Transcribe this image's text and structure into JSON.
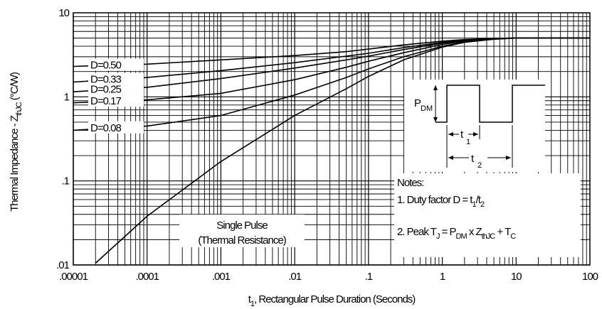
{
  "chart_data": {
    "type": "line",
    "title": "",
    "xlabel": {
      "main": "t",
      "sub": "1",
      "rest": ",  Rectangular Pulse Duration (Seconds)"
    },
    "ylabel": {
      "main": "Thermal Impedance - Z",
      "sub": "thJC",
      "rest": " (°C/W)"
    },
    "xscale": "log",
    "yscale": "log",
    "xlim": [
      1e-05,
      100
    ],
    "ylim": [
      0.01,
      10
    ],
    "grid": true,
    "x_tick_labels": [
      ".00001",
      ".0001",
      ".001",
      ".01",
      ".1",
      "1",
      "10",
      "100"
    ],
    "y_tick_labels": [
      ".01",
      ".1",
      "1",
      "10"
    ],
    "series": [
      {
        "name": "D=0.50",
        "x": [
          1e-05,
          0.0001,
          0.001,
          0.01,
          0.05,
          0.1,
          0.3,
          1,
          2,
          5,
          10,
          100
        ],
        "y": [
          2.3,
          2.45,
          2.75,
          3.1,
          3.45,
          3.7,
          4.15,
          4.6,
          4.8,
          4.95,
          5.0,
          5.0
        ]
      },
      {
        "name": "D=0.33",
        "x": [
          1e-05,
          0.0001,
          0.001,
          0.01,
          0.05,
          0.1,
          0.3,
          1,
          2,
          5,
          10,
          100
        ],
        "y": [
          1.5,
          1.7,
          2.05,
          2.55,
          3.05,
          3.3,
          3.85,
          4.45,
          4.75,
          4.95,
          5.0,
          5.0
        ]
      },
      {
        "name": "D=0.25",
        "x": [
          1e-05,
          0.0001,
          0.001,
          0.01,
          0.05,
          0.1,
          0.3,
          1,
          2,
          5,
          10,
          100
        ],
        "y": [
          1.15,
          1.3,
          1.65,
          2.2,
          2.75,
          3.05,
          3.65,
          4.35,
          4.7,
          4.95,
          5.0,
          5.0
        ]
      },
      {
        "name": "D=0.17",
        "x": [
          1e-05,
          0.0001,
          0.001,
          0.01,
          0.05,
          0.1,
          0.3,
          1,
          2,
          5,
          10,
          100
        ],
        "y": [
          0.85,
          0.92,
          1.1,
          1.6,
          2.25,
          2.65,
          3.35,
          4.2,
          4.6,
          4.9,
          5.0,
          5.0
        ]
      },
      {
        "name": "D=0.08",
        "x": [
          1e-05,
          0.0001,
          0.001,
          0.01,
          0.05,
          0.1,
          0.3,
          1,
          2,
          5,
          10,
          100
        ],
        "y": [
          0.4,
          0.45,
          0.6,
          1.05,
          1.7,
          2.15,
          3.0,
          4.0,
          4.5,
          4.85,
          5.0,
          5.0
        ]
      },
      {
        "name": "Single Pulse",
        "x": [
          2e-05,
          0.0001,
          0.001,
          0.01,
          0.05,
          0.1,
          0.3,
          1,
          2,
          5,
          10,
          100
        ],
        "y": [
          0.0105,
          0.038,
          0.17,
          0.6,
          1.25,
          1.75,
          2.75,
          3.9,
          4.45,
          4.85,
          5.0,
          5.0
        ]
      }
    ],
    "annotations": {
      "single_pulse": [
        "Single Pulse",
        "(Thermal Resistance)"
      ],
      "notes_title": "Notes:",
      "note1": {
        "prefix": "1. Duty factor D = t",
        "sub1": "1",
        "mid": "/t",
        "sub2": "2"
      },
      "note2": {
        "prefix": "2. Peak T",
        "j": "J",
        "eq": " = P",
        "dm": "DM",
        "x": " x Z",
        "thjc": "thJC",
        "plus": " + T",
        "c": "C"
      },
      "diagram": {
        "p": "P",
        "dm": "DM",
        "t1": "t",
        "t1sub": "1",
        "t2": "t",
        "t2sub": "2"
      }
    }
  }
}
